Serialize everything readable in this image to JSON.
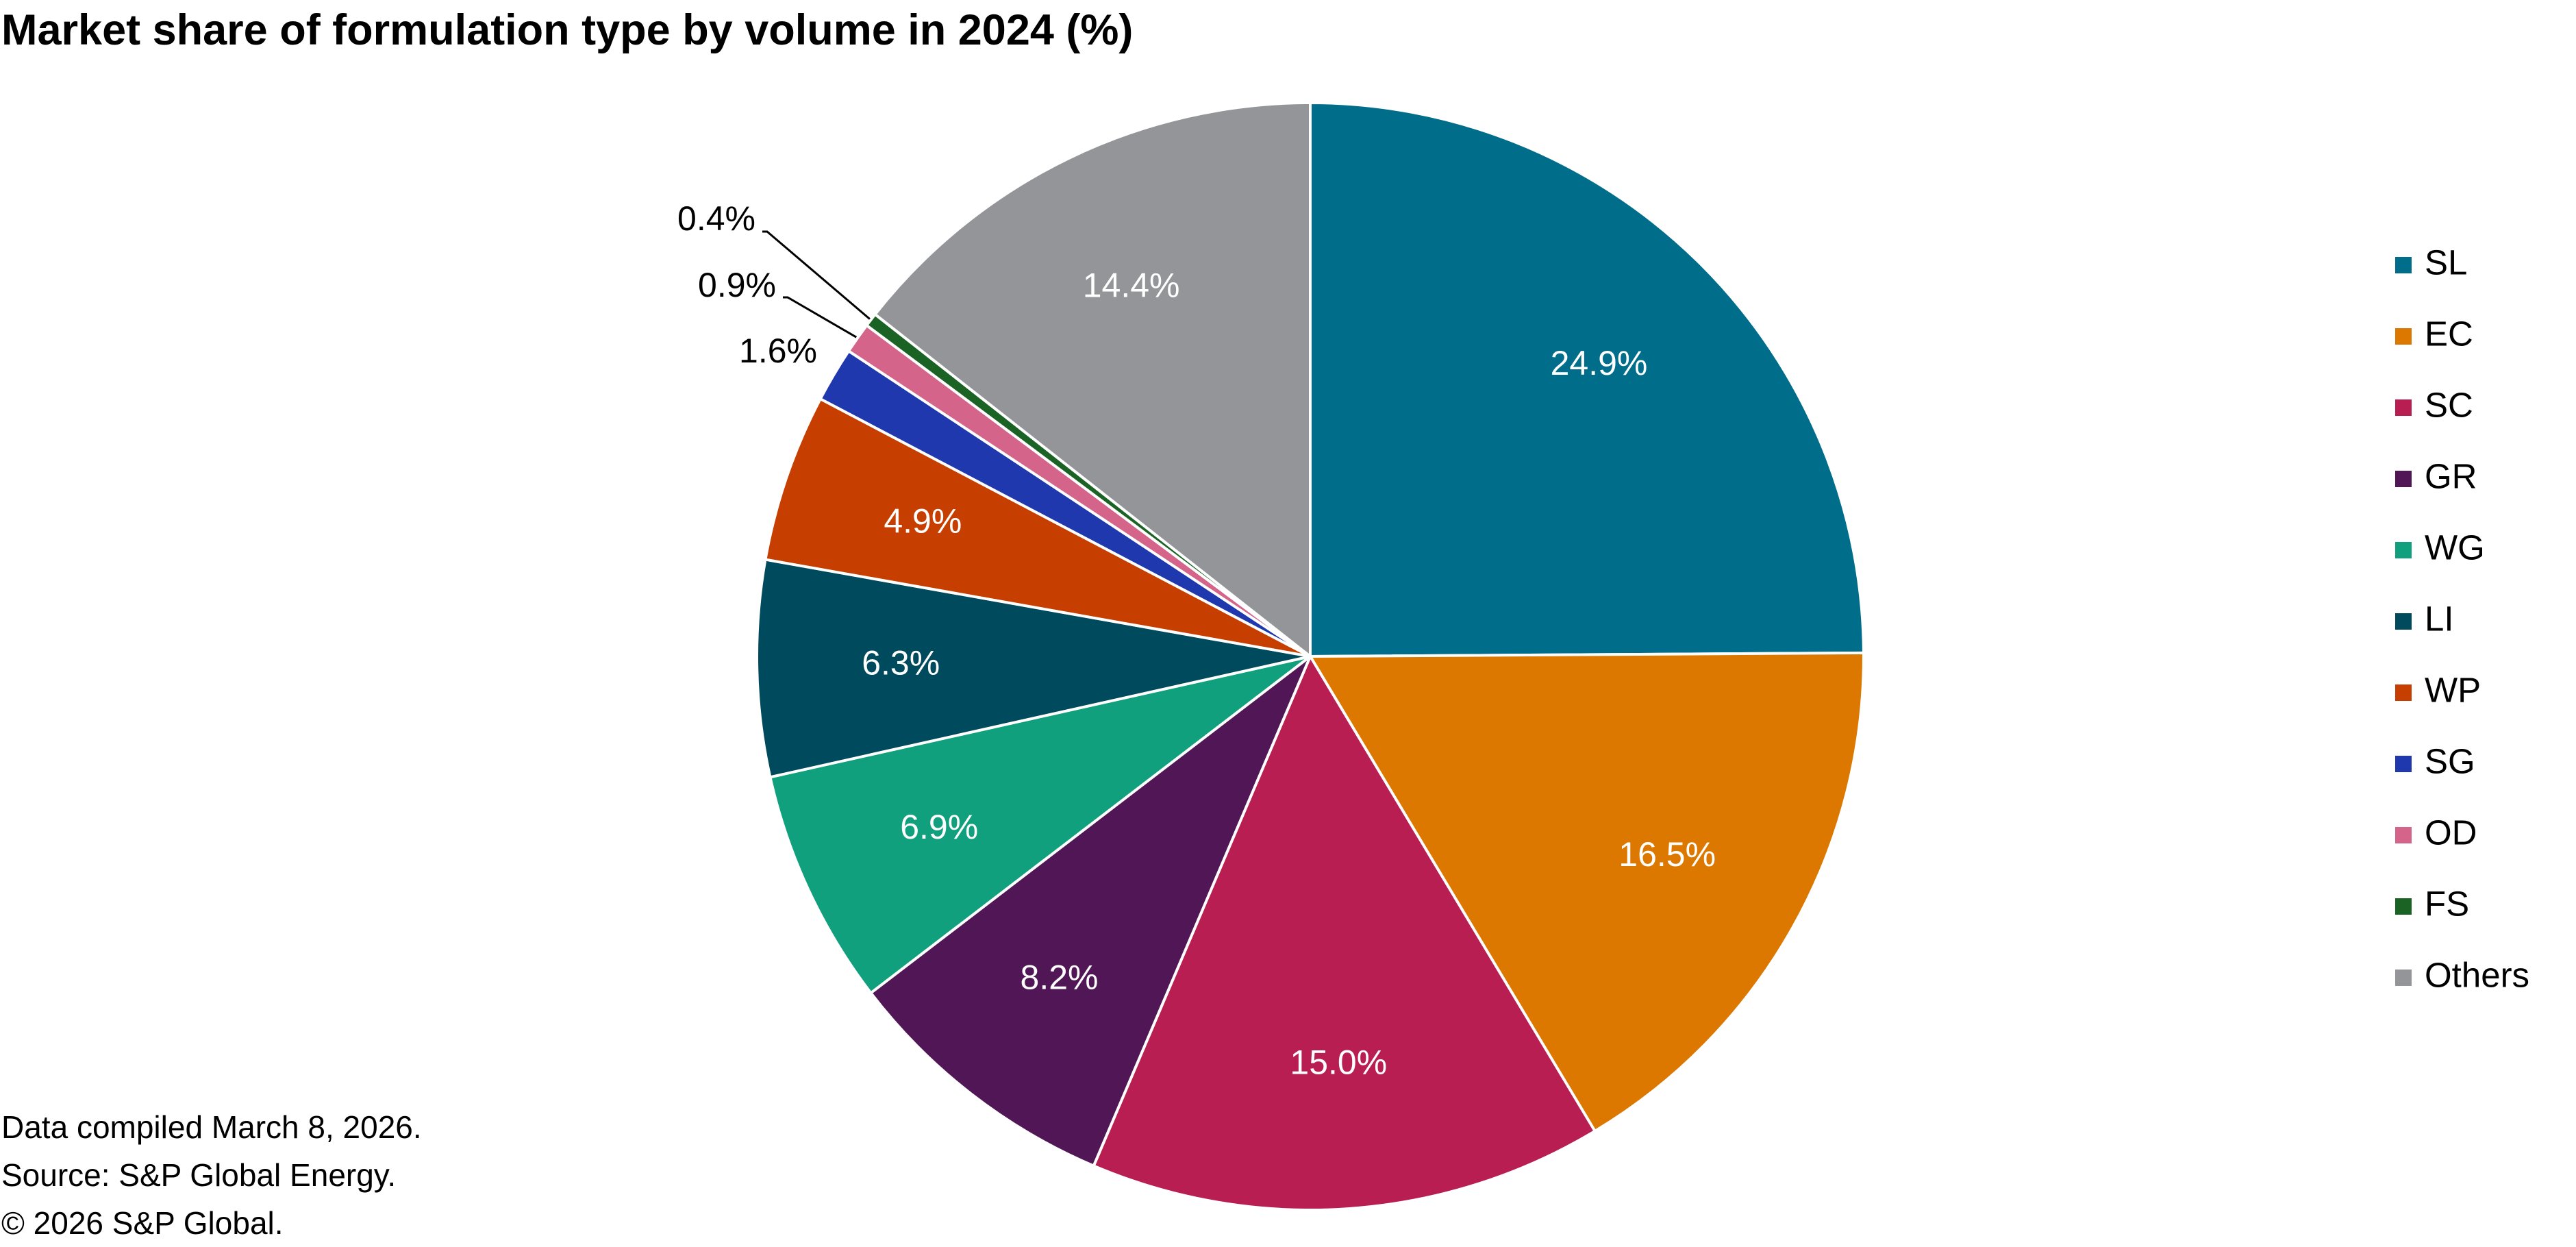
{
  "chart_data": {
    "type": "pie",
    "title": "Market share of formulation type by volume in 2024 (%)",
    "legend_position": "right",
    "slices": [
      {
        "label": "SL",
        "value": 24.9,
        "display": "24.9%",
        "color": "#006D8A"
      },
      {
        "label": "EC",
        "value": 16.5,
        "display": "16.5%",
        "color": "#DC7800"
      },
      {
        "label": "SC",
        "value": 15.0,
        "display": "15.0%",
        "color": "#B81E52"
      },
      {
        "label": "GR",
        "value": 8.2,
        "display": "8.2%",
        "color": "#501655"
      },
      {
        "label": "WG",
        "value": 6.9,
        "display": "6.9%",
        "color": "#10A07D"
      },
      {
        "label": "LI",
        "value": 6.3,
        "display": "6.3%",
        "color": "#004A5E"
      },
      {
        "label": "WP",
        "value": 4.9,
        "display": "4.9%",
        "color": "#C63F00"
      },
      {
        "label": "SG",
        "value": 1.6,
        "display": "1.6%",
        "color": "#2038AE"
      },
      {
        "label": "OD",
        "value": 0.9,
        "display": "0.9%",
        "color": "#D4648A"
      },
      {
        "label": "FS",
        "value": 0.4,
        "display": "0.4%",
        "color": "#1B6324"
      },
      {
        "label": "Others",
        "value": 14.4,
        "display": "14.4%",
        "color": "#939598"
      }
    ]
  },
  "footer": {
    "compiled": "Data compiled March 8, 2026.",
    "source": "Source: S&P Global Energy.",
    "copyright": "© 2026 S&P Global."
  }
}
